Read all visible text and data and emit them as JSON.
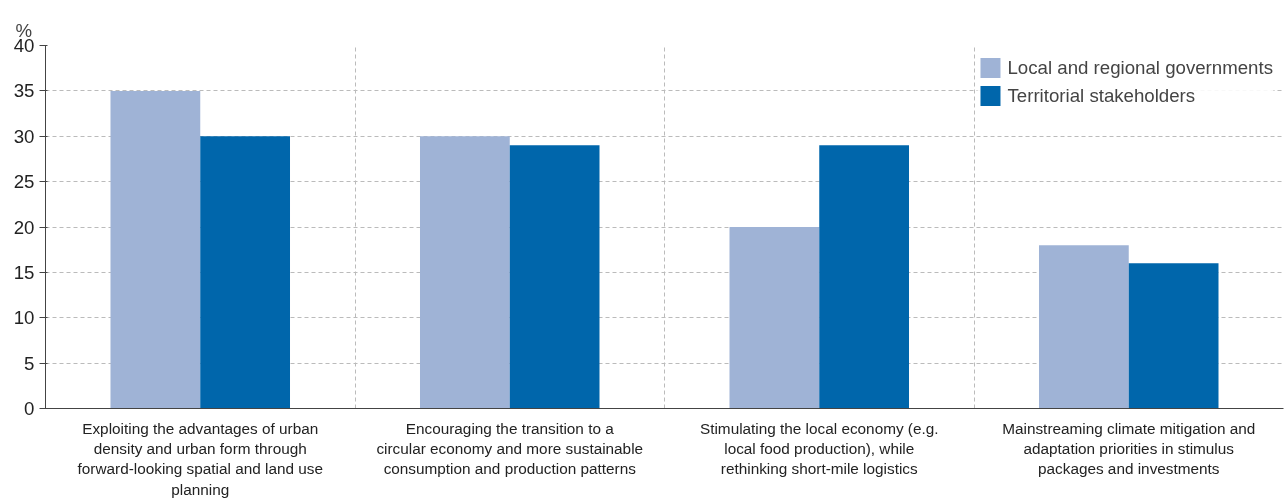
{
  "chart_data": {
    "type": "bar",
    "ylabel": "%",
    "categories": [
      "Exploiting the advantages of urban density and urban form through forward-looking spatial and land use planning",
      "Encouraging the transition to a circular economy and more sustainable consumption and production patterns",
      "Stimulating the local economy (e.g. local food production), while rethinking short-mile logistics",
      "Mainstreaming climate mitigation and adaptation priorities in stimulus packages and investments"
    ],
    "series": [
      {
        "name": "Local and regional governments",
        "color": "#9fb3d6",
        "values": [
          35,
          30,
          20,
          18
        ]
      },
      {
        "name": "Territorial stakeholders",
        "color": "#0066ab",
        "values": [
          30,
          29,
          29,
          16
        ]
      }
    ],
    "ylim": [
      0,
      40
    ],
    "yticks": [
      0,
      5,
      10,
      15,
      20,
      25,
      30,
      35,
      40
    ],
    "grid": true,
    "legend": "top right"
  }
}
